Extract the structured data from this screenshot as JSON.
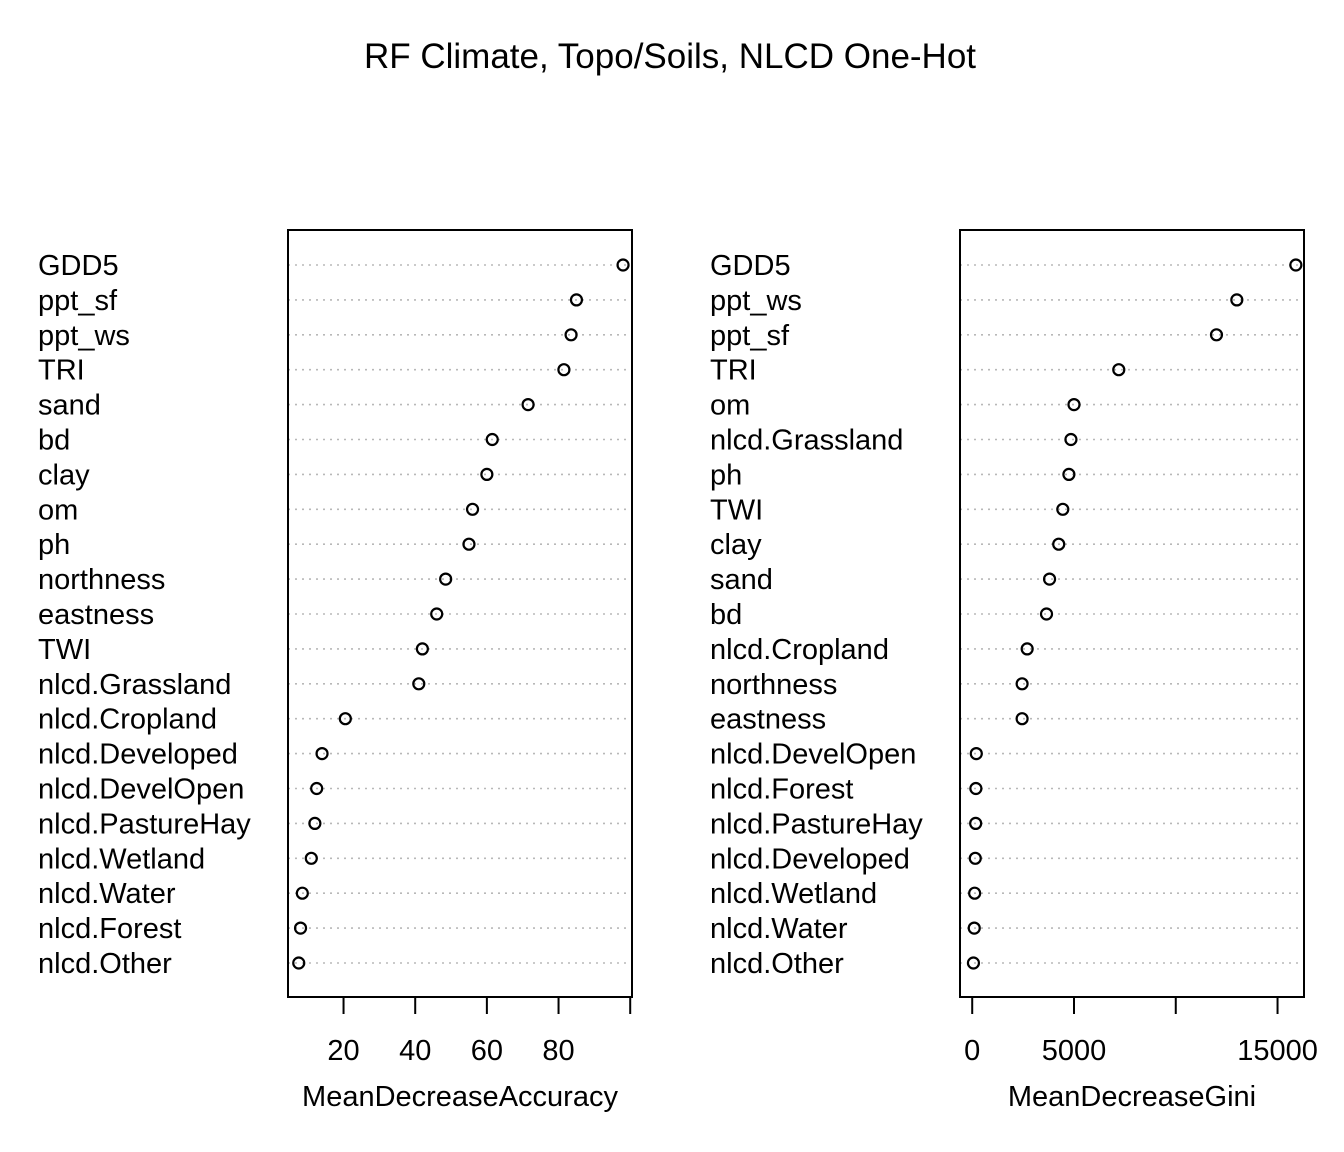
{
  "title": "RF Climate, Topo/Soils, NLCD One-Hot",
  "chart_data": [
    {
      "type": "scatter",
      "xlabel": "MeanDecreaseAccuracy",
      "ylabel": "",
      "xlim": [
        4.5,
        100.5
      ],
      "xticks": [
        20,
        40,
        60,
        80
      ],
      "extra_tick": 100,
      "grid": "dotted horizontal",
      "points": [
        {
          "label": "GDD5",
          "value": 98
        },
        {
          "label": "ppt_sf",
          "value": 85
        },
        {
          "label": "ppt_ws",
          "value": 83.5
        },
        {
          "label": "TRI",
          "value": 81.5
        },
        {
          "label": "sand",
          "value": 71.5
        },
        {
          "label": "bd",
          "value": 61.5
        },
        {
          "label": "clay",
          "value": 60
        },
        {
          "label": "om",
          "value": 56
        },
        {
          "label": "ph",
          "value": 55
        },
        {
          "label": "northness",
          "value": 48.5
        },
        {
          "label": "eastness",
          "value": 46
        },
        {
          "label": "TWI",
          "value": 42
        },
        {
          "label": "nlcd.Grassland",
          "value": 41
        },
        {
          "label": "nlcd.Cropland",
          "value": 20.5
        },
        {
          "label": "nlcd.Developed",
          "value": 14
        },
        {
          "label": "nlcd.DevelOpen",
          "value": 12.5
        },
        {
          "label": "nlcd.PastureHay",
          "value": 12
        },
        {
          "label": "nlcd.Wetland",
          "value": 11
        },
        {
          "label": "nlcd.Water",
          "value": 8.5
        },
        {
          "label": "nlcd.Forest",
          "value": 8
        },
        {
          "label": "nlcd.Other",
          "value": 7.5
        }
      ]
    },
    {
      "type": "scatter",
      "xlabel": "MeanDecreaseGini",
      "ylabel": "",
      "xlim": [
        -600,
        16300
      ],
      "xticks": [
        0,
        5000,
        15000
      ],
      "extra_tick": 10000,
      "grid": "dotted horizontal",
      "points": [
        {
          "label": "GDD5",
          "value": 15900
        },
        {
          "label": "ppt_ws",
          "value": 13000
        },
        {
          "label": "ppt_sf",
          "value": 12000
        },
        {
          "label": "TRI",
          "value": 7200
        },
        {
          "label": "om",
          "value": 5000
        },
        {
          "label": "nlcd.Grassland",
          "value": 4850
        },
        {
          "label": "ph",
          "value": 4750
        },
        {
          "label": "TWI",
          "value": 4450
        },
        {
          "label": "clay",
          "value": 4250
        },
        {
          "label": "sand",
          "value": 3800
        },
        {
          "label": "bd",
          "value": 3650
        },
        {
          "label": "nlcd.Cropland",
          "value": 2700
        },
        {
          "label": "northness",
          "value": 2450
        },
        {
          "label": "eastness",
          "value": 2450
        },
        {
          "label": "nlcd.DevelOpen",
          "value": 200
        },
        {
          "label": "nlcd.Forest",
          "value": 180
        },
        {
          "label": "nlcd.PastureHay",
          "value": 170
        },
        {
          "label": "nlcd.Developed",
          "value": 150
        },
        {
          "label": "nlcd.Wetland",
          "value": 120
        },
        {
          "label": "nlcd.Water",
          "value": 100
        },
        {
          "label": "nlcd.Other",
          "value": 60
        }
      ]
    }
  ]
}
